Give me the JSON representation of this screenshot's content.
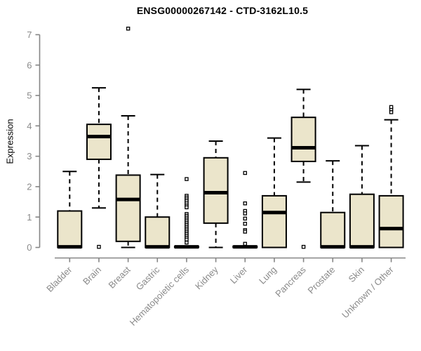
{
  "chart_data": {
    "type": "box",
    "title": "ENSG00000267142 - CTD-3162L10.5",
    "ylabel": "Expression",
    "xlabel": "",
    "ylim": [
      0,
      7
    ],
    "yticks": [
      0,
      1,
      2,
      3,
      4,
      5,
      6,
      7
    ],
    "grid": false,
    "legend": false,
    "colors": {
      "box_fill": "#EBE5CB",
      "box_border": "#000000",
      "median": "#000000",
      "axis": "#858585",
      "tick_text": "#8A8A8A",
      "title_text": "#000000",
      "background": "#FFFFFF"
    },
    "categories": [
      "Bladder",
      "Brain",
      "Breast",
      "Gastric",
      "Hematopoietic cells",
      "Kidney",
      "Liver",
      "Lung",
      "Pancreas",
      "Prostate",
      "Skin",
      "Unknown / Other"
    ],
    "series": [
      {
        "category": "Bladder",
        "min": 0,
        "q1": 0,
        "median": 0.02,
        "q3": 1.2,
        "max": 2.5,
        "outliers": []
      },
      {
        "category": "Brain",
        "min": 1.3,
        "q1": 2.9,
        "median": 3.65,
        "q3": 4.05,
        "max": 5.25,
        "outliers": [
          0.02
        ]
      },
      {
        "category": "Breast",
        "min": 0,
        "q1": 0.2,
        "median": 1.58,
        "q3": 2.38,
        "max": 4.33,
        "outliers": [
          7.2
        ]
      },
      {
        "category": "Gastric",
        "min": 0,
        "q1": 0,
        "median": 0.02,
        "q3": 1.0,
        "max": 2.4,
        "outliers": []
      },
      {
        "category": "Hematopoietic cells",
        "min": 0,
        "q1": 0,
        "median": 0.02,
        "q3": 0.04,
        "max": 0.05,
        "outliers": [
          2.25,
          1.7,
          1.64,
          1.58,
          1.52,
          1.45,
          1.38,
          1.32,
          1.1,
          1.04,
          0.98,
          0.92,
          0.86,
          0.8,
          0.74,
          0.68,
          0.62,
          0.56,
          0.5,
          0.44,
          0.38,
          0.32,
          0.26,
          0.16
        ]
      },
      {
        "category": "Kidney",
        "min": 0,
        "q1": 0.8,
        "median": 1.8,
        "q3": 2.95,
        "max": 3.5,
        "outliers": []
      },
      {
        "category": "Liver",
        "min": 0,
        "q1": 0,
        "median": 0.02,
        "q3": 0.04,
        "max": 0.05,
        "outliers": [
          2.45,
          1.45,
          1.2,
          1.12,
          0.95,
          0.78,
          0.57,
          0.52,
          0.12
        ]
      },
      {
        "category": "Lung",
        "min": 0,
        "q1": 0,
        "median": 1.15,
        "q3": 1.7,
        "max": 3.6,
        "outliers": []
      },
      {
        "category": "Pancreas",
        "min": 2.15,
        "q1": 2.83,
        "median": 3.28,
        "q3": 4.28,
        "max": 5.2,
        "outliers": [
          0.02
        ]
      },
      {
        "category": "Prostate",
        "min": 0,
        "q1": 0,
        "median": 0.02,
        "q3": 1.15,
        "max": 2.85,
        "outliers": []
      },
      {
        "category": "Skin",
        "min": 0,
        "q1": 0,
        "median": 0.02,
        "q3": 1.75,
        "max": 3.35,
        "outliers": []
      },
      {
        "category": "Unknown / Other",
        "min": 0,
        "q1": 0,
        "median": 0.62,
        "q3": 1.7,
        "max": 4.2,
        "outliers": [
          4.45,
          4.55,
          4.62
        ]
      }
    ]
  }
}
